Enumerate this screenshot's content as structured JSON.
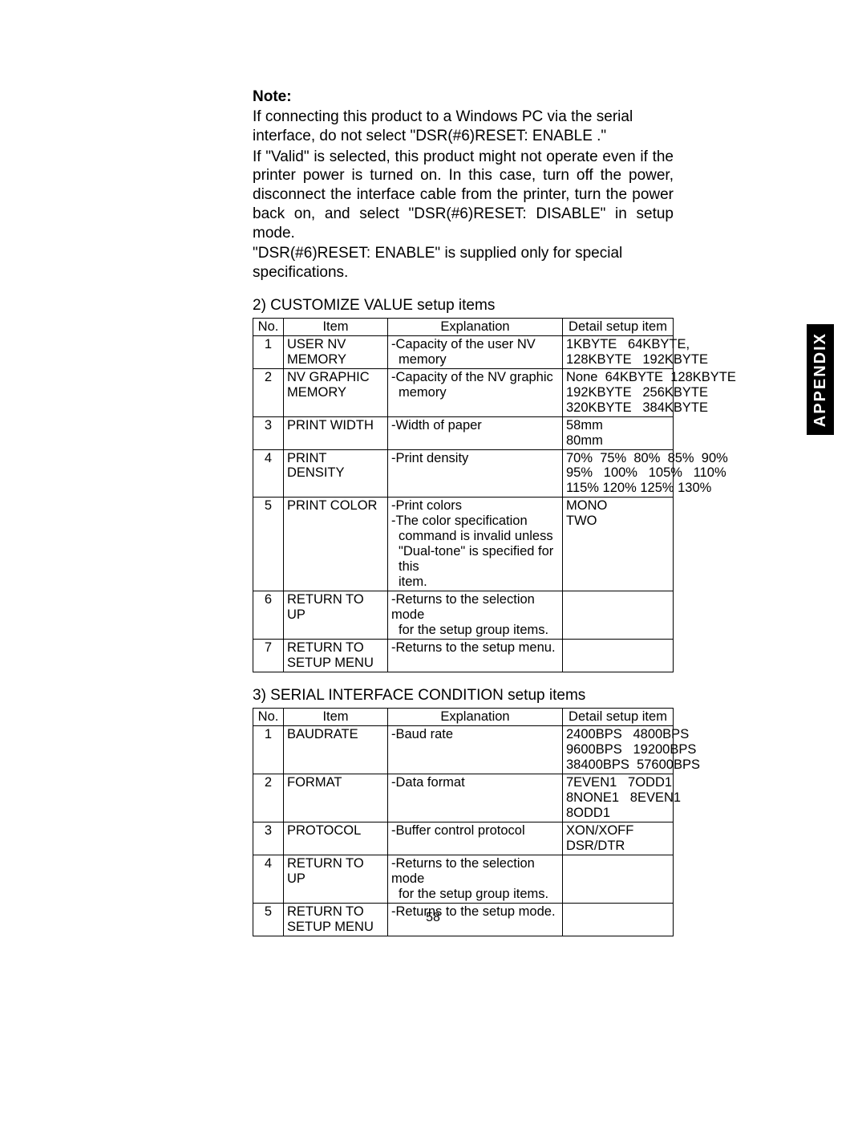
{
  "note": {
    "heading": "Note:",
    "p1": "If connecting this product to a Windows PC via the serial interface, do not select \"DSR(#6)RESET: ENABLE .\"",
    "p2": "If \"Valid\" is selected, this product might not operate even if the printer power is turned on.  In this case, turn off the power, disconnect the interface cable from the printer, turn the power back on, and select \"DSR(#6)RESET: DISABLE\" in setup mode.",
    "p3": "\"DSR(#6)RESET: ENABLE\" is supplied only for special specifications."
  },
  "sideTab": "APPENDIX",
  "pageNumber": "58",
  "section2": {
    "title": "2) CUSTOMIZE VALUE setup items",
    "headers": {
      "no": "No.",
      "item": "Item",
      "expl": "Explanation",
      "detail": "Detail setup item"
    },
    "rows": [
      {
        "no": "1",
        "item": "USER NV MEMORY",
        "expl": [
          "-Capacity of the user NV",
          " memory"
        ],
        "detail": [
          "1KBYTE   64KBYTE,",
          "128KBYTE   192KBYTE"
        ]
      },
      {
        "no": "2",
        "item": "NV GRAPHIC MEMORY",
        "expl": [
          "-Capacity of the NV graphic",
          " memory"
        ],
        "detail": [
          "None  64KBYTE  128KBYTE",
          "192KBYTE   256KBYTE",
          "320KBYTE   384KBYTE"
        ]
      },
      {
        "no": "3",
        "item": "PRINT WIDTH",
        "expl": [
          "-Width of paper"
        ],
        "detail": [
          "58mm",
          "80mm"
        ]
      },
      {
        "no": "4",
        "item": "PRINT DENSITY",
        "expl": [
          "-Print density"
        ],
        "detail": [
          "70%  75%  80%  85%  90%",
          "95%   100%   105%   110%",
          "115% 120% 125% 130%"
        ]
      },
      {
        "no": "5",
        "item": "PRINT COLOR",
        "expl": [
          "-Print colors",
          "-The color specification",
          " command is invalid unless",
          " \"Dual-tone\" is specified for this",
          " item."
        ],
        "detail": [
          "",
          "MONO",
          "TWO"
        ]
      },
      {
        "no": "6",
        "item": "RETURN TO UP",
        "expl": [
          "-Returns to the selection mode",
          " for the setup group items."
        ],
        "detail": []
      },
      {
        "no": "7",
        "item": "RETURN TO SETUP MENU",
        "expl": [
          "-Returns to the setup menu."
        ],
        "detail": []
      }
    ]
  },
  "section3": {
    "title": "3) SERIAL INTERFACE CONDITION setup items",
    "headers": {
      "no": "No.",
      "item": "Item",
      "expl": "Explanation",
      "detail": "Detail setup item"
    },
    "rows": [
      {
        "no": "1",
        "item": "BAUDRATE",
        "expl": [
          "-Baud rate"
        ],
        "detail": [
          "2400BPS   4800BPS",
          "9600BPS   19200BPS",
          "38400BPS  57600BPS"
        ]
      },
      {
        "no": "2",
        "item": "FORMAT",
        "expl": [
          "-Data format"
        ],
        "detail": [
          "7EVEN1   7ODD1",
          "8NONE1   8EVEN1",
          "8ODD1"
        ]
      },
      {
        "no": "3",
        "item": "PROTOCOL",
        "expl": [
          "-Buffer control protocol"
        ],
        "detail": [
          "XON/XOFF",
          "DSR/DTR"
        ]
      },
      {
        "no": "4",
        "item": "RETURN TO UP",
        "expl": [
          "-Returns to the selection mode",
          " for the setup group items."
        ],
        "detail": []
      },
      {
        "no": "5",
        "item": "RETURN TO SETUP MENU",
        "expl": [
          "-Returns to the setup mode."
        ],
        "detail": []
      }
    ]
  }
}
